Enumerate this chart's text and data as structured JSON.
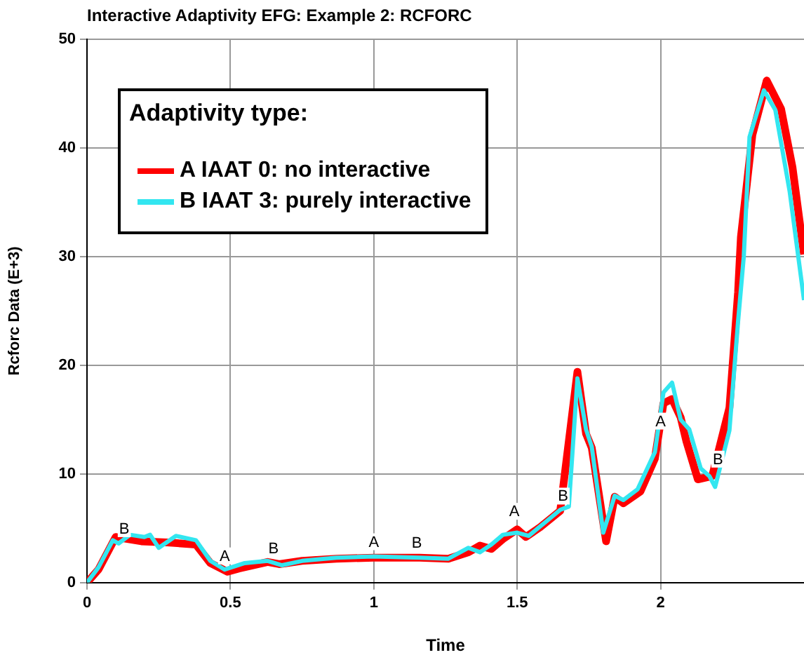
{
  "chart_data": {
    "type": "line",
    "title": "Interactive Adaptivity EFG: Example 2: RCFORC",
    "xlabel": "Time",
    "ylabel": "Rcforc Data (E+3)",
    "legend_title": "Adaptivity type:",
    "legend": "top left",
    "grid": true,
    "marker": "none",
    "line_style": "solid",
    "xlim": [
      0,
      2.5
    ],
    "xticks": [
      0,
      0.5,
      1,
      1.5,
      2
    ],
    "ylim": [
      0,
      50
    ],
    "yticks": [
      0,
      10,
      20,
      30,
      40,
      50
    ],
    "series": [
      {
        "name": "A IAAT 0: no interactive",
        "color": "#ff0000",
        "x": [
          0,
          0.04,
          0.1,
          0.19,
          0.28,
          0.38,
          0.43,
          0.49,
          0.53,
          0.63,
          0.67,
          0.75,
          0.87,
          1.0,
          1.16,
          1.26,
          1.33,
          1.37,
          1.41,
          1.45,
          1.5,
          1.53,
          1.58,
          1.65,
          1.71,
          1.74,
          1.76,
          1.81,
          1.84,
          1.87,
          1.93,
          1.98,
          2.01,
          2.04,
          2.07,
          2.09,
          2.13,
          2.18,
          2.24,
          2.27,
          2.28,
          2.32,
          2.37,
          2.42,
          2.46,
          2.5
        ],
        "values": [
          0,
          1.2,
          4.2,
          3.8,
          3.7,
          3.5,
          1.8,
          1.0,
          1.3,
          1.9,
          1.7,
          2.0,
          2.2,
          2.3,
          2.3,
          2.2,
          2.8,
          3.4,
          3.1,
          4.0,
          4.9,
          4.2,
          5.1,
          6.6,
          19.4,
          13.7,
          12.4,
          3.8,
          7.9,
          7.3,
          8.4,
          11.4,
          16.5,
          16.9,
          15.2,
          13,
          9.5,
          9.8,
          16.1,
          26.7,
          31.8,
          41.2,
          46.2,
          43.6,
          38.2,
          30.2
        ]
      },
      {
        "name": "B IAAT 3: purely interactive",
        "color": "#33e6f0",
        "x": [
          0,
          0.04,
          0.09,
          0.11,
          0.15,
          0.2,
          0.22,
          0.25,
          0.31,
          0.38,
          0.43,
          0.48,
          0.55,
          0.63,
          0.68,
          0.75,
          0.87,
          1.0,
          1.16,
          1.26,
          1.33,
          1.37,
          1.41,
          1.45,
          1.5,
          1.54,
          1.6,
          1.65,
          1.68,
          1.71,
          1.74,
          1.76,
          1.8,
          1.84,
          1.87,
          1.92,
          1.98,
          2.01,
          2.04,
          2.07,
          2.1,
          2.14,
          2.17,
          2.19,
          2.24,
          2.27,
          2.29,
          2.31,
          2.36,
          2.4,
          2.45,
          2.5
        ],
        "values": [
          0,
          1.4,
          3.9,
          3.6,
          4.4,
          4.2,
          4.4,
          3.2,
          4.3,
          3.9,
          2.0,
          1.2,
          1.8,
          2.0,
          1.6,
          2.0,
          2.3,
          2.4,
          2.3,
          2.2,
          3.2,
          2.8,
          3.5,
          4.4,
          4.6,
          4.3,
          5.6,
          6.7,
          7.0,
          18.8,
          14.1,
          12.5,
          4.6,
          8.0,
          7.6,
          8.6,
          12,
          17.5,
          18.4,
          15,
          14.1,
          10.5,
          9.8,
          8.8,
          14,
          24,
          30,
          41,
          45.3,
          43.5,
          36,
          26
        ]
      }
    ],
    "annotations": [
      {
        "text": "A",
        "x": 0.48,
        "y": 1.3
      },
      {
        "text": "A",
        "x": 1.0,
        "y": 2.6
      },
      {
        "text": "A",
        "x": 1.49,
        "y": 5.4
      },
      {
        "text": "A",
        "x": 2.0,
        "y": 13.7
      },
      {
        "text": "B",
        "x": 0.13,
        "y": 3.8
      },
      {
        "text": "B",
        "x": 0.65,
        "y": 2.0
      },
      {
        "text": "B",
        "x": 1.15,
        "y": 2.5
      },
      {
        "text": "B",
        "x": 1.66,
        "y": 6.8
      },
      {
        "text": "B",
        "x": 2.2,
        "y": 10.2
      }
    ]
  }
}
